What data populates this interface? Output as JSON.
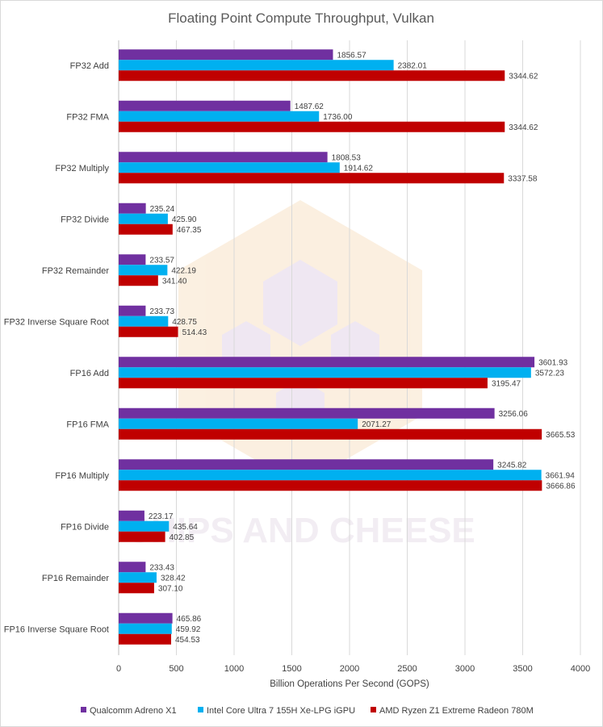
{
  "chart_data": {
    "type": "bar",
    "orientation": "horizontal",
    "title": "Floating Point Compute Throughput, Vulkan",
    "xlabel": "Billion Operations Per Second (GOPS)",
    "ylabel": "",
    "xlim": [
      0,
      4000
    ],
    "xticks": [
      0,
      500,
      1000,
      1500,
      2000,
      2500,
      3000,
      3500,
      4000
    ],
    "grid": true,
    "legend_position": "bottom",
    "categories": [
      "FP32 Add",
      "FP32 FMA",
      "FP32 Multiply",
      "FP32 Divide",
      "FP32 Remainder",
      "FP32 Inverse Square Root",
      "FP16 Add",
      "FP16 FMA",
      "FP16 Multiply",
      "FP16 Divide",
      "FP16 Remainder",
      "FP16 Inverse Square Root"
    ],
    "series": [
      {
        "name": "Qualcomm Adreno X1",
        "color": "#7030a0",
        "values": [
          1856.57,
          1487.62,
          1808.53,
          235.24,
          233.57,
          233.73,
          3601.93,
          3256.06,
          3245.82,
          223.17,
          233.43,
          465.86
        ],
        "labels": [
          "1856.57",
          "1487.62",
          "1808.53",
          "235.24",
          "233.57",
          "233.73",
          "3601.93",
          "3256.06",
          "3245.82",
          "223.17",
          "233.43",
          "465.86"
        ]
      },
      {
        "name": "Intel Core Ultra 7 155H Xe-LPG iGPU",
        "color": "#00b0f0",
        "values": [
          2382.01,
          1736.0,
          1914.62,
          425.9,
          422.19,
          428.75,
          3572.23,
          2071.27,
          3661.94,
          435.64,
          328.42,
          459.92
        ],
        "labels": [
          "2382.01",
          "1736.00",
          "1914.62",
          "425.90",
          "422.19",
          "428.75",
          "3572.23",
          "2071.27",
          "3661.94",
          "435.64",
          "328.42",
          "459.92"
        ]
      },
      {
        "name": "AMD Ryzen Z1 Extreme Radeon 780M",
        "color": "#c00000",
        "values": [
          3344.62,
          3344.62,
          3337.58,
          467.35,
          341.4,
          514.43,
          3195.47,
          3665.53,
          3666.86,
          402.85,
          307.1,
          454.53
        ],
        "labels": [
          "3344.62",
          "3344.62",
          "3337.58",
          "467.35",
          "341.40",
          "514.43",
          "3195.47",
          "3665.53",
          "3666.86",
          "402.85",
          "307.10",
          "454.53"
        ]
      }
    ]
  },
  "watermark": {
    "text": "CHIPS AND CHEESE",
    "icon": "chip-hexagon-logo"
  }
}
